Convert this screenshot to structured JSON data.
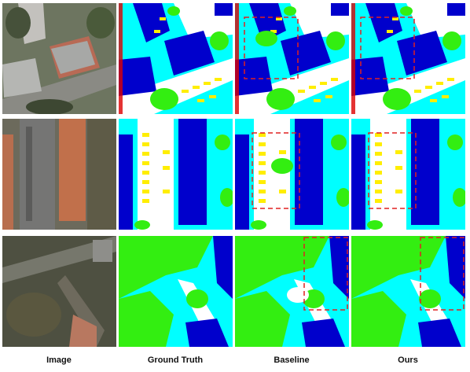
{
  "figure": {
    "columns": [
      "Image",
      "Ground Truth",
      "Baseline",
      "Ours"
    ]
  }
}
